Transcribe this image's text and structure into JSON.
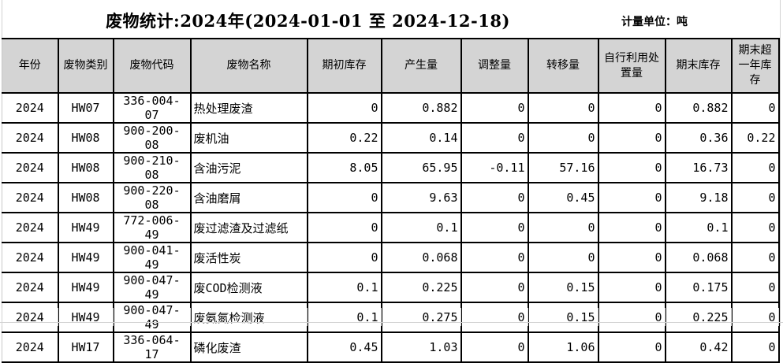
{
  "title": "废物统计:2024年(2024-01-01 至 2024-12-18)",
  "unit_label": "计量单位：吨",
  "colors": {
    "header_bg": "#d4d4d4",
    "grid_line": "#000000",
    "faint_grid": "#d2d2d2",
    "background": "#ffffff"
  },
  "table": {
    "columns": [
      {
        "key": "year",
        "label": "年份"
      },
      {
        "key": "waste_category",
        "label": "废物类别"
      },
      {
        "key": "waste_code",
        "label": "废物代码"
      },
      {
        "key": "waste_name",
        "label": "废物名称"
      },
      {
        "key": "opening_stock",
        "label": "期初库存"
      },
      {
        "key": "generated",
        "label": "产生量"
      },
      {
        "key": "adjusted",
        "label": "调整量"
      },
      {
        "key": "transferred",
        "label": "转移量"
      },
      {
        "key": "self_disposed",
        "label": "自行利用处置量"
      },
      {
        "key": "ending_stock",
        "label": "期末库存"
      },
      {
        "key": "ending_over_one_year",
        "label": "期末超一年库存"
      }
    ],
    "rows": [
      [
        "2024",
        "HW07",
        "336-004-07",
        "热处理废渣",
        "0",
        "0.882",
        "0",
        "0",
        "0",
        "0.882",
        "0"
      ],
      [
        "2024",
        "HW08",
        "900-200-08",
        "废机油",
        "0.22",
        "0.14",
        "0",
        "0",
        "0",
        "0.36",
        "0.22"
      ],
      [
        "2024",
        "HW08",
        "900-210-08",
        "含油污泥",
        "8.05",
        "65.95",
        "-0.11",
        "57.16",
        "0",
        "16.73",
        "0"
      ],
      [
        "2024",
        "HW08",
        "900-220-08",
        "含油磨屑",
        "0",
        "9.63",
        "0",
        "0.45",
        "0",
        "9.18",
        "0"
      ],
      [
        "2024",
        "HW49",
        "772-006-49",
        "废过滤渣及过滤纸",
        "0",
        "0.1",
        "0",
        "0",
        "0",
        "0.1",
        "0"
      ],
      [
        "2024",
        "HW49",
        "900-041-49",
        "废活性炭",
        "0",
        "0.068",
        "0",
        "0",
        "0",
        "0.068",
        "0"
      ],
      [
        "2024",
        "HW49",
        "900-047-49",
        "废COD检测液",
        "0.1",
        "0.225",
        "0",
        "0.15",
        "0",
        "0.175",
        "0"
      ],
      [
        "2024",
        "HW49",
        "900-047-49",
        "废氨氮检测液",
        "0.1",
        "0.275",
        "0",
        "0.15",
        "0",
        "0.225",
        "0"
      ],
      [
        "2024",
        "HW17",
        "336-064-17",
        "磷化废渣",
        "0.45",
        "1.03",
        "0",
        "1.06",
        "0",
        "0.42",
        "0"
      ]
    ]
  }
}
